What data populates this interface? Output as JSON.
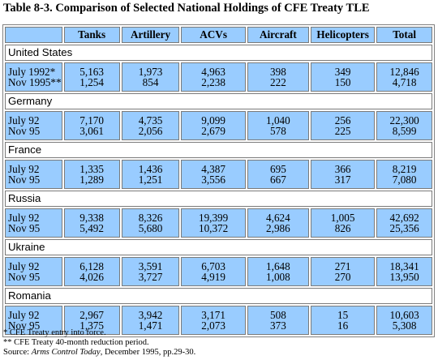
{
  "title": "Table 8-3. Comparison of Selected National Holdings of CFE Treaty TLE",
  "columns": [
    "Tanks",
    "Artillery",
    "ACVs",
    "Aircraft",
    "Helicopters",
    "Total"
  ],
  "countries": [
    {
      "name": "United States",
      "dates": [
        "July 1992*",
        "Nov 1995**"
      ],
      "values": [
        [
          "5,163",
          "1,254"
        ],
        [
          "1,973",
          "854"
        ],
        [
          "4,963",
          "2,238"
        ],
        [
          "398",
          "222"
        ],
        [
          "349",
          "150"
        ],
        [
          "12,846",
          "4,718"
        ]
      ]
    },
    {
      "name": "Germany",
      "dates": [
        "July 92",
        "Nov 95"
      ],
      "values": [
        [
          "7,170",
          "3,061"
        ],
        [
          "4,735",
          "2,056"
        ],
        [
          "9,099",
          "2,679"
        ],
        [
          "1,040",
          "578"
        ],
        [
          "256",
          "225"
        ],
        [
          "22,300",
          "8,599"
        ]
      ]
    },
    {
      "name": "France",
      "dates": [
        "July 92",
        "Nov 95"
      ],
      "values": [
        [
          "1,335",
          "1,289"
        ],
        [
          "1,436",
          "1,251"
        ],
        [
          "4,387",
          "3,556"
        ],
        [
          "695",
          "667"
        ],
        [
          "366",
          "317"
        ],
        [
          "8,219",
          "7,080"
        ]
      ]
    },
    {
      "name": "Russia",
      "dates": [
        "July 92",
        "Nov 95"
      ],
      "values": [
        [
          "9,338",
          "5,492"
        ],
        [
          "8,326",
          "5,680"
        ],
        [
          "19,399",
          "10,372"
        ],
        [
          "4,624",
          "2,986"
        ],
        [
          "1,005",
          "826"
        ],
        [
          "42,692",
          "25,356"
        ]
      ]
    },
    {
      "name": "Ukraine",
      "dates": [
        "July 92",
        "Nov 95"
      ],
      "values": [
        [
          "6,128",
          "4,026"
        ],
        [
          "3,591",
          "3,727"
        ],
        [
          "6,703",
          "4,919"
        ],
        [
          "1,648",
          "1,008"
        ],
        [
          "271",
          "270"
        ],
        [
          "18,341",
          "13,950"
        ]
      ]
    },
    {
      "name": "Romania",
      "dates": [
        "July 92",
        "Nov 95"
      ],
      "values": [
        [
          "2,967",
          "1,375"
        ],
        [
          "3,942",
          "1,471"
        ],
        [
          "3,171",
          "2,073"
        ],
        [
          "508",
          "373"
        ],
        [
          "15",
          "16"
        ],
        [
          "10,603",
          "5,308"
        ]
      ]
    }
  ],
  "notes": {
    "note1": "* CFE Treaty entry into force.",
    "note2": "** CFE Treaty 40-month reduction period.",
    "source_prefix": "Source: ",
    "source_title": "Arms Control Today",
    "source_suffix": ", December 1995, pp.29-30."
  },
  "colors": {
    "cell_fill": "#99ccff",
    "country_row_fill": "#ffffff",
    "border": "#7a7a7a"
  }
}
